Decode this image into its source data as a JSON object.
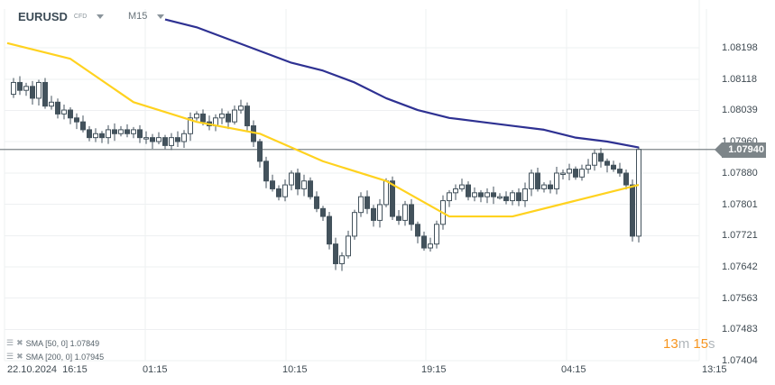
{
  "header": {
    "symbol": "EURUSD",
    "symbol_type": "CFD",
    "timeframe": "M15"
  },
  "indicators": [
    {
      "label": "SMA [50, 0] 1.07849",
      "color": "#ffd21f"
    },
    {
      "label": "SMA [200, 0] 1.07945",
      "color": "#2e3192"
    }
  ],
  "timer": {
    "minutes": "13",
    "m": "m",
    "seconds": "15",
    "s": "s"
  },
  "colors": {
    "candle": "#43525c",
    "sma50": "#ffd21f",
    "sma200": "#2e3192",
    "grid": "#eef0f2",
    "price_tag": "#7d8589",
    "timer": "#f7941d"
  },
  "chart_data": {
    "type": "candlestick",
    "price_axis": {
      "ticks": [
        "1.08198",
        "1.08118",
        "1.08039",
        "1.07960",
        "1.07880",
        "1.07801",
        "1.07721",
        "1.07642",
        "1.07563",
        "1.07483",
        "1.07404"
      ],
      "range": [
        1.07404,
        1.08198
      ]
    },
    "time_axis": {
      "ticks": [
        "22.10.2024  16:15",
        "01:15",
        "10:15",
        "19:15",
        "04:15",
        "13:15"
      ]
    },
    "current_price": "1.07940",
    "closes": [
      1.0808,
      1.0811,
      1.0809,
      1.081,
      1.0807,
      1.0811,
      1.0805,
      1.0806,
      1.0803,
      1.0804,
      1.0802,
      1.0801,
      1.0799,
      1.0797,
      1.0798,
      1.0797,
      1.0799,
      1.0798,
      1.0799,
      1.0798,
      1.0799,
      1.0797,
      1.0797,
      1.0796,
      1.0797,
      1.0795,
      1.0797,
      1.0796,
      1.0798,
      1.0802,
      1.0803,
      1.0801,
      1.08,
      1.0802,
      1.0803,
      1.0801,
      1.0804,
      1.0805,
      1.08,
      1.0796,
      1.0791,
      1.0786,
      1.0784,
      1.0782,
      1.0785,
      1.0788,
      1.0784,
      1.0786,
      1.0782,
      1.0779,
      1.0777,
      1.077,
      1.0765,
      1.0767,
      1.0772,
      1.0778,
      1.0782,
      1.0779,
      1.0776,
      1.078,
      1.0786,
      1.0777,
      1.0776,
      1.078,
      1.0775,
      1.0772,
      1.0769,
      1.077,
      1.0775,
      1.0781,
      1.0783,
      1.0784,
      1.0785,
      1.0782,
      1.0783,
      1.0782,
      1.0783,
      1.0782,
      1.0782,
      1.0781,
      1.0783,
      1.0781,
      1.0784,
      1.0788,
      1.0784,
      1.0785,
      1.0784,
      1.0788,
      1.0788,
      1.0789,
      1.0787,
      1.0789,
      1.079,
      1.0793,
      1.0791,
      1.079,
      1.0789,
      1.0788,
      1.0785,
      1.0772,
      1.0794
    ],
    "sma50": {
      "start_index": 0,
      "step": 10,
      "values": [
        1.0821,
        1.0817,
        1.0806,
        1.0801,
        1.0798,
        1.0791,
        1.0786,
        1.0777,
        1.0777,
        1.0781,
        1.0785
      ]
    },
    "sma200": {
      "start_index": 25,
      "step": 5,
      "values": [
        1.0827,
        1.0825,
        1.0822,
        1.0819,
        1.0816,
        1.0814,
        1.0811,
        1.0807,
        1.0804,
        1.0802,
        1.0801,
        1.08,
        1.0799,
        1.0797,
        1.0796,
        1.07945
      ]
    }
  }
}
